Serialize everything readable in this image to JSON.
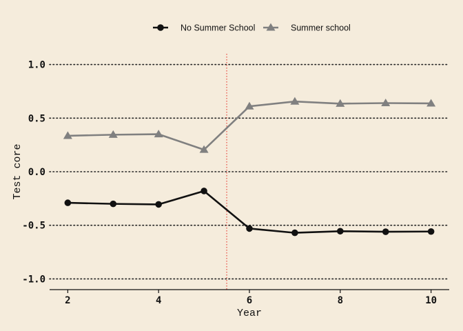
{
  "chart_data": {
    "type": "line",
    "title": "",
    "xlabel": "Year",
    "ylabel": "Test core",
    "x": [
      2,
      3,
      4,
      5,
      6,
      7,
      8,
      9,
      10
    ],
    "xticks": [
      "2",
      "4",
      "6",
      "8",
      "10"
    ],
    "xlim": [
      1.6,
      10.4
    ],
    "yticks": [
      "-1.0",
      "-0.5",
      "0.0",
      "0.5",
      "1.0"
    ],
    "ylim": [
      -1.1,
      1.1
    ],
    "vline_x": 5.5,
    "grid": "horizontal dotted",
    "legend_position": "top",
    "series": [
      {
        "name": "No Summer School",
        "marker": "circle",
        "color": "#111111",
        "values": [
          -0.29,
          -0.3,
          -0.305,
          -0.18,
          -0.53,
          -0.57,
          -0.555,
          -0.56,
          -0.558
        ]
      },
      {
        "name": "Summer school",
        "marker": "triangle",
        "color": "#808080",
        "values": [
          0.335,
          0.345,
          0.35,
          0.205,
          0.61,
          0.655,
          0.635,
          0.64,
          0.637
        ]
      }
    ],
    "colors": {
      "background": "#f5ecdc",
      "vline": "#e8443a",
      "grid": "#222222"
    }
  }
}
